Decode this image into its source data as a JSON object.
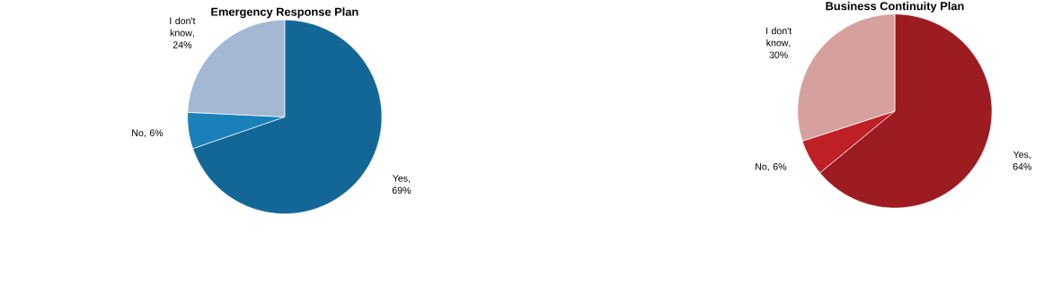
{
  "chart_data": [
    {
      "type": "pie",
      "title": "Emergency Response Plan",
      "categories": [
        "Yes",
        "No",
        "I don't know"
      ],
      "values": [
        69,
        6,
        24
      ],
      "value_labels": [
        ", 69%",
        ", 6%",
        ", 24%"
      ],
      "colors": [
        "#136796",
        "#1a80b9",
        "#a3b8d2"
      ]
    },
    {
      "type": "pie",
      "title": "Business Continuity Plan",
      "categories": [
        "Yes",
        "No",
        "I don't know"
      ],
      "values": [
        64,
        6,
        30
      ],
      "value_labels": [
        ", 64%",
        ", 6%",
        ", 30%"
      ],
      "colors": [
        "#9c1c22",
        "#bf2026",
        "#d6a09f"
      ]
    }
  ]
}
